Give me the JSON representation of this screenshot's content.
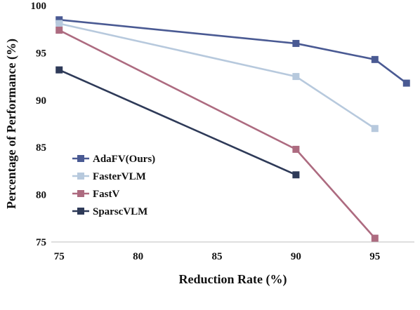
{
  "chart_data": {
    "type": "line",
    "xlabel": "Reduction Rate (%)",
    "ylabel": "Percentage of  Performance (%)",
    "xlim": [
      74.5,
      97.5
    ],
    "ylim": [
      75,
      100
    ],
    "xticks": [
      "75",
      "80",
      "85",
      "90",
      "95"
    ],
    "yticks": [
      "75",
      "80",
      "85",
      "90",
      "95",
      "100"
    ],
    "grid": false,
    "legend": "center-left",
    "series": [
      {
        "name": "AdaFV(Ours)",
        "color": "#4a5a93",
        "points": [
          [
            75,
            98.5
          ],
          [
            90,
            96.0
          ],
          [
            95,
            94.3
          ],
          [
            97,
            91.8
          ]
        ]
      },
      {
        "name": "FasterVLM",
        "color": "#b7c9dd",
        "points": [
          [
            75,
            98.1
          ],
          [
            90,
            92.5
          ],
          [
            95,
            87.0
          ]
        ]
      },
      {
        "name": "FastV",
        "color": "#ad6b80",
        "points": [
          [
            75,
            97.4
          ],
          [
            90,
            84.8
          ],
          [
            95,
            75.4
          ]
        ]
      },
      {
        "name": "SparscVLM",
        "color": "#2e3a58",
        "points": [
          [
            75,
            93.2
          ],
          [
            90,
            82.1
          ]
        ]
      }
    ]
  }
}
